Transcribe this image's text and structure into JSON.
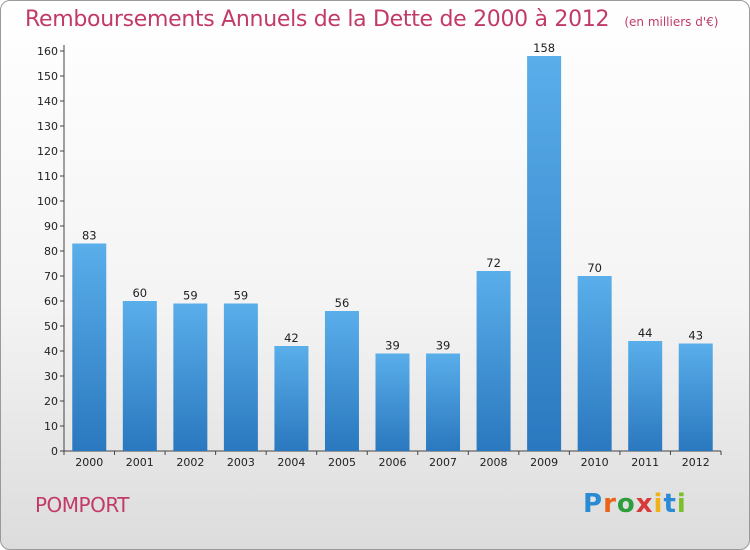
{
  "header": {
    "title": "Remboursements Annuels de la Dette de 2000 à 2012",
    "subtitle": "(en milliers d'€)"
  },
  "footer": {
    "commune": "POMPORT",
    "logo_text": "Proxiti"
  },
  "colors": {
    "title": "#c23a6a",
    "bar_top": "#5aaeea",
    "bar_bottom": "#2a78bf"
  },
  "chart_data": {
    "type": "bar",
    "title": "Remboursements Annuels de la Dette de 2000 à 2012",
    "subtitle": "(en milliers d'€)",
    "categories": [
      "2000",
      "2001",
      "2002",
      "2003",
      "2004",
      "2005",
      "2006",
      "2007",
      "2008",
      "2009",
      "2010",
      "2011",
      "2012"
    ],
    "values": [
      83,
      60,
      59,
      59,
      42,
      56,
      39,
      39,
      72,
      158,
      70,
      44,
      43
    ],
    "ylim": [
      0,
      160
    ],
    "yticks": [
      0,
      10,
      20,
      30,
      40,
      50,
      60,
      70,
      80,
      90,
      100,
      110,
      120,
      130,
      140,
      150,
      160
    ],
    "grid": false,
    "data_labels": true
  }
}
